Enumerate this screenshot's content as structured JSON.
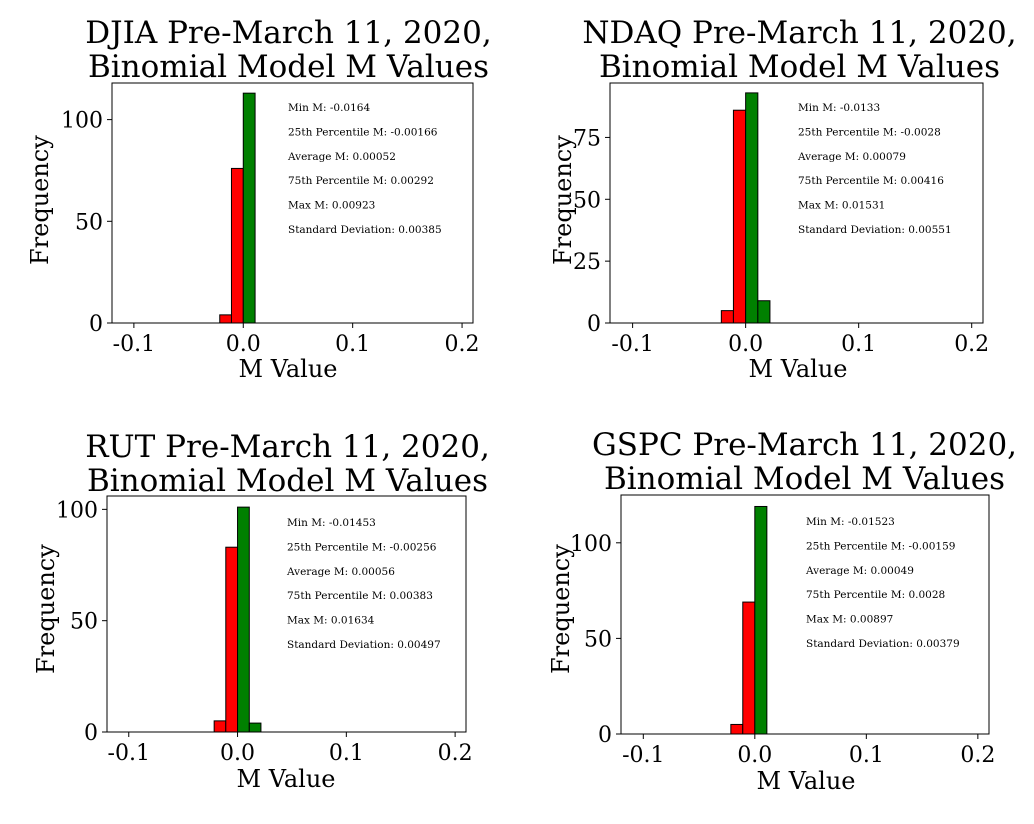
{
  "chart_data": [
    {
      "type": "bar",
      "title_line1": "DJIA Pre-March 11, 2020,",
      "title_line2": "Binomial Model M Values",
      "xlabel": "M Value",
      "ylabel": "Frequency",
      "xlim": [
        -0.12,
        0.21
      ],
      "ylim": [
        0,
        118
      ],
      "xticks": [
        "-0.1",
        "0.0",
        "0.1",
        "0.2"
      ],
      "xtick_values": [
        -0.1,
        0.0,
        0.1,
        0.2
      ],
      "yticks": [
        "0",
        "50",
        "100"
      ],
      "ytick_values": [
        0,
        50,
        100
      ],
      "bins": [
        {
          "x0": -0.0215,
          "x1": -0.0108,
          "count": 4,
          "color": "#ff0000"
        },
        {
          "x0": -0.0108,
          "x1": 0.0,
          "count": 76,
          "color": "#ff0000"
        },
        {
          "x0": 0.0,
          "x1": 0.0108,
          "count": 113,
          "color": "#008000"
        }
      ],
      "stats": [
        "Min M: -0.0164",
        "25th Percentile M: -0.00166",
        "Average M: 0.00052",
        "75th Percentile M: 0.00292",
        "Max M: 0.00923",
        "Standard Deviation: 0.00385"
      ]
    },
    {
      "type": "bar",
      "title_line1": "NDAQ Pre-March 11, 2020,",
      "title_line2": "Binomial Model M Values",
      "xlabel": "M Value",
      "ylabel": "Frequency",
      "xlim": [
        -0.12,
        0.21
      ],
      "ylim": [
        0,
        97
      ],
      "xticks": [
        "-0.1",
        "0.0",
        "0.1",
        "0.2"
      ],
      "xtick_values": [
        -0.1,
        0.0,
        0.1,
        0.2
      ],
      "yticks": [
        "0",
        "25",
        "50",
        "75"
      ],
      "ytick_values": [
        0,
        25,
        50,
        75
      ],
      "bins": [
        {
          "x0": -0.0215,
          "x1": -0.0108,
          "count": 5,
          "color": "#ff0000"
        },
        {
          "x0": -0.0108,
          "x1": 0.0,
          "count": 86,
          "color": "#ff0000"
        },
        {
          "x0": 0.0,
          "x1": 0.0108,
          "count": 93,
          "color": "#008000"
        },
        {
          "x0": 0.0108,
          "x1": 0.0215,
          "count": 9,
          "color": "#008000"
        }
      ],
      "stats": [
        "Min M: -0.0133",
        "25th Percentile M: -0.0028",
        "Average M: 0.00079",
        "75th Percentile M: 0.00416",
        "Max M: 0.01531",
        "Standard Deviation: 0.00551"
      ]
    },
    {
      "type": "bar",
      "title_line1": "RUT Pre-March 11, 2020,",
      "title_line2": "Binomial Model M Values",
      "xlabel": "M Value",
      "ylabel": "Frequency",
      "xlim": [
        -0.12,
        0.21
      ],
      "ylim": [
        0,
        106
      ],
      "xticks": [
        "-0.1",
        "0.0",
        "0.1",
        "0.2"
      ],
      "xtick_values": [
        -0.1,
        0.0,
        0.1,
        0.2
      ],
      "yticks": [
        "0",
        "50",
        "100"
      ],
      "ytick_values": [
        0,
        50,
        100
      ],
      "bins": [
        {
          "x0": -0.0215,
          "x1": -0.0108,
          "count": 5,
          "color": "#ff0000"
        },
        {
          "x0": -0.0108,
          "x1": 0.0,
          "count": 83,
          "color": "#ff0000"
        },
        {
          "x0": 0.0,
          "x1": 0.0108,
          "count": 101,
          "color": "#008000"
        },
        {
          "x0": 0.0108,
          "x1": 0.0215,
          "count": 4,
          "color": "#008000"
        }
      ],
      "stats": [
        "Min M: -0.01453",
        "25th Percentile M: -0.00256",
        "Average M: 0.00056",
        "75th Percentile M: 0.00383",
        "Max M: 0.01634",
        "Standard Deviation: 0.00497"
      ]
    },
    {
      "type": "bar",
      "title_line1": "GSPC Pre-March 11, 2020,",
      "title_line2": "Binomial Model M Values",
      "xlabel": "M Value",
      "ylabel": "Frequency",
      "xlim": [
        -0.12,
        0.21
      ],
      "ylim": [
        0,
        125
      ],
      "xticks": [
        "-0.1",
        "0.0",
        "0.1",
        "0.2"
      ],
      "xtick_values": [
        -0.1,
        0.0,
        0.1,
        0.2
      ],
      "yticks": [
        "0",
        "50",
        "100"
      ],
      "ytick_values": [
        0,
        50,
        100
      ],
      "bins": [
        {
          "x0": -0.0215,
          "x1": -0.0108,
          "count": 5,
          "color": "#ff0000"
        },
        {
          "x0": -0.0108,
          "x1": 0.0,
          "count": 69,
          "color": "#ff0000"
        },
        {
          "x0": 0.0,
          "x1": 0.0108,
          "count": 119,
          "color": "#008000"
        }
      ],
      "stats": [
        "Min M: -0.01523",
        "25th Percentile M: -0.00159",
        "Average M: 0.00049",
        "75th Percentile M: 0.0028",
        "Max M: 0.00897",
        "Standard Deviation: 0.00379"
      ]
    }
  ]
}
